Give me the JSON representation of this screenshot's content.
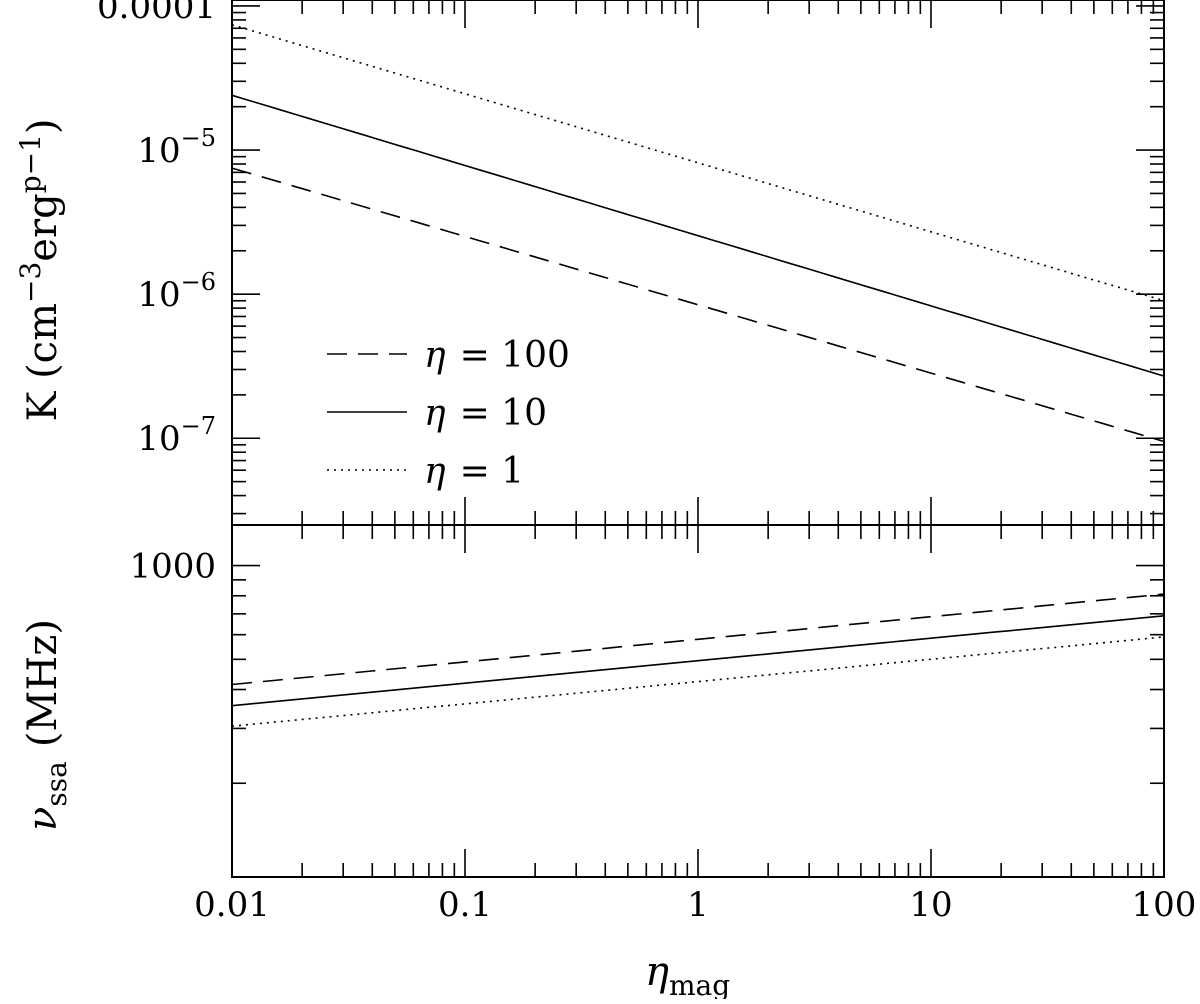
{
  "chart_data": [
    {
      "panel": "top",
      "type": "line",
      "xscale": "log",
      "yscale": "log",
      "xlim": [
        0.01,
        100
      ],
      "ylim": [
        2.5e-08,
        0.00011
      ],
      "xlabel": "",
      "ylabel": {
        "main": "K  (cm",
        "exp1": "−3",
        "mid": "erg",
        "exp2": "p−1",
        "end": ")"
      },
      "yticks": [
        {
          "value": 0.0001,
          "base": "0.0001",
          "exp": ""
        },
        {
          "value": 1e-05,
          "base": "10",
          "exp": "−5"
        },
        {
          "value": 1e-06,
          "base": "10",
          "exp": "−6"
        },
        {
          "value": 1e-07,
          "base": "10",
          "exp": "−7"
        }
      ],
      "legend_position": "lower-left",
      "legend_symbol": "η",
      "series": [
        {
          "name": "= 100",
          "style": "dashed",
          "x": [
            0.01,
            100
          ],
          "y": [
            7.5e-06,
            9.5e-08
          ]
        },
        {
          "name": "= 10",
          "style": "solid",
          "x": [
            0.01,
            100
          ],
          "y": [
            2.4e-05,
            2.7e-07
          ]
        },
        {
          "name": "= 1",
          "style": "dotted",
          "x": [
            0.01,
            100
          ],
          "y": [
            7.4e-05,
            9e-07
          ]
        }
      ]
    },
    {
      "panel": "bottom",
      "type": "line",
      "xscale": "log",
      "yscale": "log",
      "xlim": [
        0.01,
        100
      ],
      "ylim": [
        100,
        1350
      ],
      "xlabel": {
        "main": "η",
        "sub": "mag"
      },
      "ylabel": {
        "main": "ν",
        "sub": "ssa",
        "unit": "(MHz)"
      },
      "yticks": [
        {
          "value": 1000,
          "base": "1000",
          "exp": ""
        }
      ],
      "xticks": [
        {
          "value": 0.01,
          "label": "0.01"
        },
        {
          "value": 0.1,
          "label": "0.1"
        },
        {
          "value": 1,
          "label": "1"
        },
        {
          "value": 10,
          "label": "10"
        },
        {
          "value": 100,
          "label": "100"
        }
      ],
      "series": [
        {
          "style": "dashed",
          "x": [
            0.01,
            100
          ],
          "y": [
            415,
            810
          ]
        },
        {
          "style": "solid",
          "x": [
            0.01,
            100
          ],
          "y": [
            355,
            690
          ]
        },
        {
          "style": "dotted",
          "x": [
            0.01,
            100
          ],
          "y": [
            305,
            590
          ]
        }
      ]
    }
  ]
}
